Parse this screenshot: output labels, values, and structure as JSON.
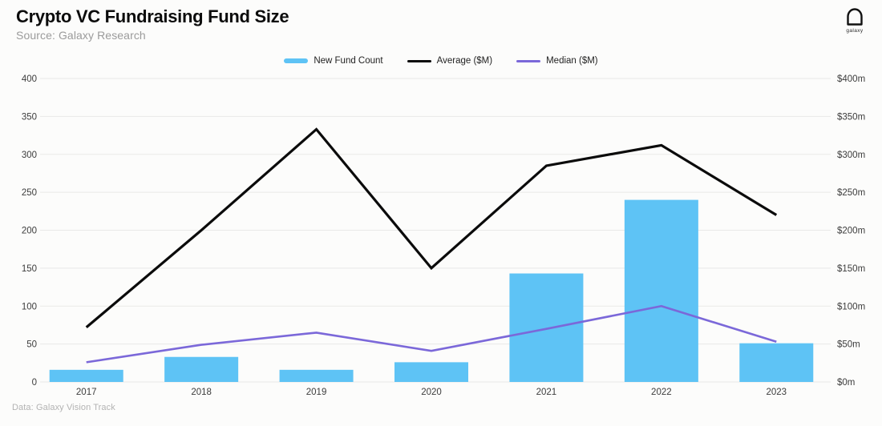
{
  "header": {
    "title": "Crypto VC Fundraising Fund Size",
    "subtitle": "Source: Galaxy Research",
    "logo_text": "galaxy"
  },
  "legend": {
    "items": [
      {
        "label": "New Fund Count",
        "color": "#5EC3F5",
        "shape": "thick-line"
      },
      {
        "label": "Average ($M)",
        "color": "#0b0b0b",
        "shape": "line"
      },
      {
        "label": "Median ($M)",
        "color": "#7B68D9",
        "shape": "line"
      }
    ]
  },
  "footer": {
    "note": "Data: Galaxy Vision Track"
  },
  "chart_data": {
    "type": "bar",
    "title": "Crypto VC Fundraising Fund Size",
    "categories": [
      "2017",
      "2018",
      "2019",
      "2020",
      "2021",
      "2022",
      "2023"
    ],
    "series": [
      {
        "name": "New Fund Count",
        "type": "bar",
        "axis": "left",
        "color": "#5EC3F5",
        "values": [
          16,
          33,
          16,
          26,
          143,
          240,
          51
        ]
      },
      {
        "name": "Average ($M)",
        "type": "line",
        "axis": "right",
        "color": "#0b0b0b",
        "values": [
          72,
          200,
          333,
          150,
          285,
          312,
          220
        ]
      },
      {
        "name": "Median ($M)",
        "type": "line",
        "axis": "right",
        "color": "#7B68D9",
        "values": [
          26,
          49,
          65,
          41,
          70,
          100,
          53
        ]
      }
    ],
    "left_axis": {
      "min": 0,
      "max": 400,
      "step": 50,
      "ticks": [
        "0",
        "50",
        "100",
        "150",
        "200",
        "250",
        "300",
        "350",
        "400"
      ]
    },
    "right_axis": {
      "min": 0,
      "max": 400,
      "step": 50,
      "ticks": [
        "$0m",
        "$50m",
        "$100m",
        "$150m",
        "$200m",
        "$250m",
        "$300m",
        "$350m",
        "$400m"
      ]
    },
    "grid": true,
    "legend_position": "top",
    "colors": {
      "bar": "#5EC3F5",
      "average_line": "#0b0b0b",
      "median_line": "#7B68D9",
      "gridline": "#e9e9e7",
      "tick_text": "#3c3c3c",
      "background": "#fcfcfb"
    }
  }
}
